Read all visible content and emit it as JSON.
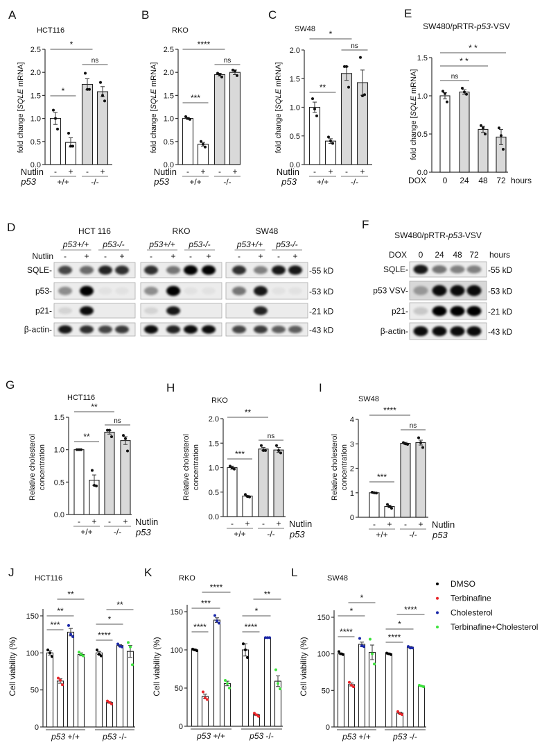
{
  "colors": {
    "bar_white": "#ffffff",
    "bar_gray": "#d9d9d9",
    "DMSO": "#000000",
    "Terbinafine": "#e8262a",
    "Cholesterol": "#1a27a8",
    "Terbinafine+Cholesterol": "#3de33d"
  },
  "chart_data": [
    {
      "id": "A",
      "type": "bar",
      "letter": "A",
      "title": "HCT116",
      "ylabel": [
        "fold change [",
        "SQLE",
        " mRNA]"
      ],
      "ylim": [
        0,
        2.5
      ],
      "yticks": [
        "0.0",
        "0.5",
        "1.0",
        "1.5",
        "2.0",
        "2.5"
      ],
      "lanes": [
        "-",
        "+",
        "-",
        "+"
      ],
      "row_labels": [
        "Nutlin",
        "p53"
      ],
      "groups": [
        "+/+",
        "-/-"
      ],
      "values": [
        1.0,
        0.48,
        1.74,
        1.58
      ],
      "errors": [
        0.13,
        0.1,
        0.12,
        0.11
      ],
      "points": [
        [
          1.18,
          1.0,
          0.77
        ],
        [
          0.68,
          0.4,
          0.4
        ],
        [
          1.98,
          1.63,
          1.63
        ],
        [
          1.78,
          1.5,
          1.38
        ]
      ],
      "fills": [
        "white",
        "white",
        "gray",
        "gray"
      ],
      "significance": [
        {
          "from": 0,
          "to": 2,
          "label": "*"
        },
        {
          "from": 2,
          "to": 3,
          "label": "ns"
        },
        {
          "from": 0,
          "to": 1,
          "label": "*"
        }
      ]
    },
    {
      "id": "B",
      "type": "bar",
      "letter": "B",
      "title": "RKO",
      "ylabel": [
        "fold change [",
        "SQLE",
        " mRNA]"
      ],
      "ylim": [
        0,
        2.5
      ],
      "yticks": [
        "0.0",
        "0.5",
        "1.0",
        "1.5",
        "2.0",
        "2.5"
      ],
      "lanes": [
        "-",
        "+",
        "-",
        "+"
      ],
      "row_labels": [
        "Nutlin",
        "p53"
      ],
      "groups": [
        "+/+",
        "-/-"
      ],
      "values": [
        1.0,
        0.44,
        1.95,
        2.0
      ],
      "errors": [
        0.02,
        0.04,
        0.03,
        0.05
      ],
      "points": [
        [
          1.04,
          1.0,
          0.98
        ],
        [
          0.5,
          0.44,
          0.38
        ],
        [
          1.98,
          1.95,
          1.9
        ],
        [
          2.05,
          2.03,
          1.93
        ]
      ],
      "fills": [
        "white",
        "white",
        "gray",
        "gray"
      ],
      "significance": [
        {
          "from": 0,
          "to": 2,
          "label": "****"
        },
        {
          "from": 2,
          "to": 3,
          "label": "ns"
        },
        {
          "from": 0,
          "to": 1,
          "label": "***"
        }
      ]
    },
    {
      "id": "C",
      "type": "bar",
      "letter": "C",
      "title": "SW48",
      "ylabel": [
        "fold change [",
        "SQLE",
        " mRNA]"
      ],
      "ylim": [
        0,
        2.0
      ],
      "yticks": [
        "0.0",
        "0.5",
        "1.0",
        "1.5",
        "2.0"
      ],
      "lanes": [
        "-",
        "+",
        "-",
        "+"
      ],
      "row_labels": [
        "Nutlin",
        "p53"
      ],
      "groups": [
        "+/+",
        "-/-"
      ],
      "values": [
        1.0,
        0.41,
        1.59,
        1.43
      ],
      "errors": [
        0.09,
        0.04,
        0.12,
        0.22
      ],
      "points": [
        [
          1.15,
          0.97,
          0.85
        ],
        [
          0.48,
          0.41,
          0.37
        ],
        [
          1.71,
          1.71,
          1.35
        ],
        [
          1.87,
          1.2,
          1.22
        ]
      ],
      "fills": [
        "white",
        "white",
        "gray",
        "gray"
      ],
      "significance": [
        {
          "from": 0,
          "to": 2,
          "label": "*"
        },
        {
          "from": 2,
          "to": 3,
          "label": "ns"
        },
        {
          "from": 0,
          "to": 1,
          "label": "**"
        }
      ]
    },
    {
      "id": "E",
      "type": "bar",
      "letter": "E",
      "title": [
        "SW480/pRTR-",
        "p53",
        "-VSV"
      ],
      "ylabel": [
        "fold change [",
        "SQLE",
        " mRNA]"
      ],
      "ylim": [
        0,
        1.5
      ],
      "yticks": [
        "0.0",
        "0.5",
        "1.0",
        "1.5"
      ],
      "lanes": [
        "0",
        "24",
        "48",
        "72"
      ],
      "row_labels": [
        "DOX",
        "hours"
      ],
      "values": [
        1.0,
        1.05,
        0.56,
        0.46
      ],
      "errors": [
        0.04,
        0.03,
        0.04,
        0.1
      ],
      "points": [
        [
          1.06,
          1.03,
          0.92
        ],
        [
          1.1,
          1.05,
          1.02
        ],
        [
          0.61,
          0.58,
          0.5
        ],
        [
          0.58,
          0.48,
          0.3
        ]
      ],
      "fills": [
        "white",
        "gray",
        "gray",
        "gray"
      ],
      "significance": [
        {
          "from": 0,
          "to": 3,
          "label": "* *"
        },
        {
          "from": 0,
          "to": 2,
          "label": "* *"
        },
        {
          "from": 0,
          "to": 1,
          "label": "ns"
        }
      ]
    },
    {
      "id": "G",
      "type": "bar",
      "letter": "G",
      "title": "HCT116",
      "ylabel": [
        "Relative cholesterol",
        "concentration"
      ],
      "ylim": [
        0,
        1.5
      ],
      "yticks": [
        "0.0",
        "0.5",
        "1.0",
        "1.5"
      ],
      "lanes": [
        "-",
        "+",
        "-",
        "+"
      ],
      "row_labels": [
        "Nutlin",
        "p53"
      ],
      "groups": [
        "+/+",
        "-/-"
      ],
      "values": [
        1.0,
        0.53,
        1.27,
        1.14
      ],
      "errors": [
        0.005,
        0.08,
        0.03,
        0.06
      ],
      "points": [
        [
          1.0,
          1.0,
          1.0
        ],
        [
          0.68,
          0.45,
          0.44
        ],
        [
          1.3,
          1.3,
          1.2
        ],
        [
          1.22,
          1.17,
          0.98
        ]
      ],
      "fills": [
        "white",
        "white",
        "gray",
        "gray"
      ],
      "significance": [
        {
          "from": 0,
          "to": 2,
          "label": "**"
        },
        {
          "from": 2,
          "to": 3,
          "label": "ns"
        },
        {
          "from": 0,
          "to": 1,
          "label": "**"
        }
      ]
    },
    {
      "id": "H",
      "type": "bar",
      "letter": "H",
      "title": "RKO",
      "ylabel": [
        "Relative cholesterol",
        "concentration"
      ],
      "ylim": [
        0,
        2.0
      ],
      "yticks": [
        "0.0",
        "0.5",
        "1.0",
        "1.5",
        "2.0"
      ],
      "lanes": [
        "-",
        "+",
        "-",
        "+"
      ],
      "row_labels": [
        "Nutlin",
        "p53"
      ],
      "groups": [
        "+/+",
        "-/-"
      ],
      "values": [
        1.0,
        0.42,
        1.38,
        1.36
      ],
      "errors": [
        0.03,
        0.01,
        0.03,
        0.05
      ],
      "points": [
        [
          1.03,
          0.99,
          0.97
        ],
        [
          0.45,
          0.41,
          0.4
        ],
        [
          1.45,
          1.35,
          1.35
        ],
        [
          1.45,
          1.35,
          1.3
        ]
      ],
      "fills": [
        "white",
        "white",
        "gray",
        "gray"
      ],
      "significance": [
        {
          "from": 0,
          "to": 2,
          "label": "**"
        },
        {
          "from": 2,
          "to": 3,
          "label": "ns"
        },
        {
          "from": 0,
          "to": 1,
          "label": "***"
        }
      ]
    },
    {
      "id": "I",
      "type": "bar",
      "letter": "I",
      "title": "SW48",
      "ylabel": [
        "Relative cholesterol",
        "concentration"
      ],
      "ylim": [
        0,
        4
      ],
      "yticks": [
        "0",
        "1",
        "2",
        "3",
        "4"
      ],
      "lanes": [
        "-",
        "+",
        "-",
        "+"
      ],
      "row_labels": [
        "Nutlin",
        "p53"
      ],
      "groups": [
        "+/+",
        "-/-"
      ],
      "values": [
        1.0,
        0.44,
        3.02,
        3.05
      ],
      "errors": [
        0.02,
        0.05,
        0.04,
        0.1
      ],
      "points": [
        [
          1.02,
          1.0,
          0.99
        ],
        [
          0.52,
          0.44,
          0.37
        ],
        [
          3.05,
          3.0,
          2.98
        ],
        [
          3.25,
          3.05,
          2.85
        ]
      ],
      "fills": [
        "white",
        "white",
        "gray",
        "gray"
      ],
      "significance": [
        {
          "from": 0,
          "to": 2,
          "label": "****"
        },
        {
          "from": 2,
          "to": 3,
          "label": "ns"
        },
        {
          "from": 0,
          "to": 1,
          "label": "***"
        }
      ]
    },
    {
      "id": "J",
      "type": "bar",
      "letter": "J",
      "title": "HCT116",
      "ylabel": [
        "Cell viability (%)"
      ],
      "ylim": [
        0,
        160
      ],
      "yticks": [
        "0",
        "50",
        "100",
        "150"
      ],
      "group_gene": "p53",
      "groups": [
        "+/+",
        "-/-"
      ],
      "categories": [
        "DMSO",
        "Terbinafine",
        "Cholesterol",
        "Terbinafine+Cholesterol",
        "DMSO",
        "Terbinafine",
        "Cholesterol",
        "Terbinafine+Cholesterol"
      ],
      "values": [
        100,
        62,
        128,
        98,
        100,
        33,
        110,
        102
      ],
      "errors": [
        3,
        3,
        5,
        2,
        2,
        1,
        1,
        8
      ],
      "points": [
        [
          104,
          100,
          95
        ],
        [
          66,
          63,
          57
        ],
        [
          137,
          125,
          122
        ],
        [
          101,
          98,
          96
        ],
        [
          104,
          98,
          96
        ],
        [
          35,
          33,
          31
        ],
        [
          112,
          109,
          108
        ],
        [
          114,
          108,
          84
        ]
      ],
      "significance": [
        {
          "from": 1,
          "to": 3,
          "label": "**"
        },
        {
          "from": 0,
          "to": 2,
          "label": "**"
        },
        {
          "from": 0,
          "to": 1,
          "label": "***"
        },
        {
          "from": 5,
          "to": 7,
          "label": "**"
        },
        {
          "from": 4,
          "to": 6,
          "label": "*"
        },
        {
          "from": 4,
          "to": 5,
          "label": "****"
        }
      ]
    },
    {
      "id": "K",
      "type": "bar",
      "letter": "K",
      "title": "RKO",
      "ylabel": [
        "Cell viability (%)"
      ],
      "ylim": [
        0,
        160
      ],
      "yticks": [
        "0",
        "50",
        "100",
        "150"
      ],
      "group_gene": "p53",
      "groups": [
        "+/+",
        "-/-"
      ],
      "categories": [
        "DMSO",
        "Terbinafine",
        "Cholesterol",
        "Terbinafine+Cholesterol",
        "DMSO",
        "Terbinafine",
        "Cholesterol",
        "Terbinafine+Cholesterol"
      ],
      "values": [
        100,
        39,
        139,
        56,
        100,
        15,
        116,
        59
      ],
      "errors": [
        1,
        3,
        3,
        3,
        8,
        1,
        0.5,
        7
      ],
      "points": [
        [
          101,
          100,
          99
        ],
        [
          45,
          37,
          35
        ],
        [
          145,
          138,
          135
        ],
        [
          60,
          56,
          50
        ],
        [
          108,
          100,
          90
        ],
        [
          17,
          15,
          13
        ],
        [
          116,
          116,
          116
        ],
        [
          74,
          56,
          49
        ]
      ],
      "significance": [
        {
          "from": 1,
          "to": 3,
          "label": "****"
        },
        {
          "from": 0,
          "to": 2,
          "label": "***"
        },
        {
          "from": 0,
          "to": 1,
          "label": "****"
        },
        {
          "from": 5,
          "to": 7,
          "label": "**"
        },
        {
          "from": 4,
          "to": 6,
          "label": "*"
        },
        {
          "from": 4,
          "to": 5,
          "label": "****"
        }
      ]
    },
    {
      "id": "L",
      "type": "bar",
      "letter": "L",
      "title": "SW48",
      "ylabel": [
        "Cell viability (%)"
      ],
      "ylim": [
        0,
        160
      ],
      "yticks": [
        "0",
        "50",
        "100",
        "150"
      ],
      "group_gene": "p53",
      "groups": [
        "+/+",
        "-/-"
      ],
      "categories": [
        "DMSO",
        "Terbinafine",
        "Cholesterol",
        "Terbinafine+Cholesterol",
        "DMSO",
        "Terbinafine",
        "Cholesterol",
        "Terbinafine+Cholesterol"
      ],
      "values": [
        100,
        58,
        113,
        102,
        100,
        19,
        109,
        56
      ],
      "errors": [
        1,
        2,
        3,
        10,
        1,
        1,
        1,
        0.5
      ],
      "points": [
        [
          103,
          100,
          99
        ],
        [
          61,
          57,
          55
        ],
        [
          121,
          111,
          110
        ],
        [
          120,
          100,
          86
        ],
        [
          101,
          100,
          99
        ],
        [
          21,
          18,
          17
        ],
        [
          110,
          108,
          108
        ],
        [
          57,
          56,
          55
        ]
      ],
      "significance": [
        {
          "from": 1,
          "to": 3,
          "label": "*"
        },
        {
          "from": 0,
          "to": 2,
          "label": "*"
        },
        {
          "from": 0,
          "to": 1,
          "label": "****"
        },
        {
          "from": 5,
          "to": 7,
          "label": "****"
        },
        {
          "from": 4,
          "to": 6,
          "label": "*"
        },
        {
          "from": 4,
          "to": 5,
          "label": "****"
        }
      ]
    }
  ],
  "legend": [
    "DMSO",
    "Terbinafine",
    "Cholesterol",
    "Terbinafine+Cholesterol"
  ],
  "blots": {
    "D": {
      "letter": "D",
      "treatment_label": "Nutlin",
      "lanes": [
        "-",
        "+",
        "-",
        "+"
      ],
      "cell_lines": [
        {
          "name": "HCT 116",
          "genotypes": [
            "p53+/+",
            "p53-/-"
          ],
          "intensity": [
            [
              0.7,
              0.55,
              0.85,
              0.8
            ],
            [
              0.4,
              1,
              0.04,
              0.04
            ],
            [
              0.1,
              0.95,
              0,
              0
            ],
            [
              0.9,
              0.8,
              0.7,
              0.75
            ]
          ]
        },
        {
          "name": "RKO",
          "genotypes": [
            "p53+/+",
            "p53-/-"
          ],
          "intensity": [
            [
              0.8,
              0.5,
              1,
              1
            ],
            [
              0.4,
              1,
              0.04,
              0.04
            ],
            [
              0.1,
              0.9,
              0,
              0
            ],
            [
              0.95,
              0.85,
              0.95,
              0.95
            ]
          ]
        },
        {
          "name": "SW48",
          "genotypes": [
            "p53+/+",
            "p53-/-"
          ],
          "intensity": [
            [
              0.8,
              0.45,
              0.9,
              0.9
            ],
            [
              0.5,
              0.9,
              0.04,
              0.04
            ],
            [
              0,
              0.85,
              0,
              0
            ],
            [
              0.7,
              0.75,
              0.6,
              0.6
            ]
          ]
        }
      ],
      "rows": [
        "SQLE-",
        "p53-",
        "p21-",
        "β-actin-"
      ],
      "sizes": [
        "-55 kD",
        "-53 kD",
        "-21 kD",
        "-43 kD"
      ]
    },
    "F": {
      "letter": "F",
      "title": [
        "SW480/pRTR-",
        "p53",
        "-VSV"
      ],
      "treatment_label": "DOX",
      "lanes": [
        "0",
        "24",
        "48",
        "72"
      ],
      "unit": "hours",
      "rows": [
        "SQLE-",
        "p53 VSV-",
        "p21-",
        "β-actin-"
      ],
      "sizes": [
        "-55 kD",
        "-53 kD",
        "-21 kD",
        "-43 kD"
      ],
      "intensity": [
        [
          0.9,
          0.5,
          0.45,
          0.45
        ],
        [
          0.3,
          0.95,
          0.95,
          0.95
        ],
        [
          0.15,
          1,
          1,
          1
        ],
        [
          0.95,
          0.95,
          0.95,
          0.95
        ]
      ]
    }
  }
}
